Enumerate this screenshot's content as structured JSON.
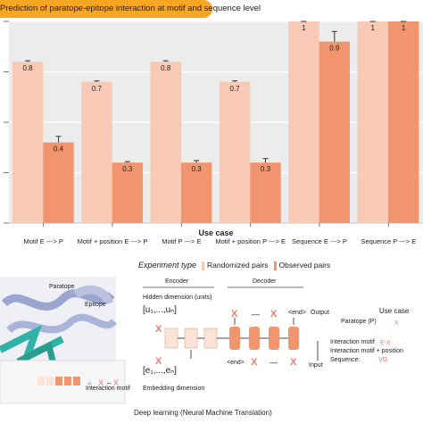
{
  "chart_data": {
    "type": "bar",
    "title": "Prediction of paratope-epitope interaction at motif and sequence level",
    "xlabel": "Use case",
    "ylabel": "",
    "ylim": [
      0,
      1
    ],
    "categories": [
      "Motif E ---> P",
      "Motif + position E ---> P",
      "Motif P ---> E",
      "Motif + position P ---> E",
      "Sequence E ---> P",
      "Sequence P ---> E"
    ],
    "series": [
      {
        "name": "Randomized pairs",
        "color": "#f8c9b4",
        "values": [
          0.8,
          0.7,
          0.8,
          0.7,
          1,
          1
        ],
        "labels": [
          "0.8",
          "0.7",
          "0.8",
          "0.7",
          "1",
          "1"
        ],
        "err": [
          0.005,
          0.005,
          0.005,
          0.005,
          0.004,
          0.004
        ]
      },
      {
        "name": "Observed pairs",
        "color": "#f0956e",
        "values": [
          0.4,
          0.3,
          0.3,
          0.3,
          0.9,
          1
        ],
        "labels": [
          "0.4",
          "0.3",
          "0.3",
          "0.3",
          "0.9",
          "1"
        ],
        "err": [
          0.03,
          0.005,
          0.01,
          0.02,
          0.05,
          0.01
        ]
      }
    ],
    "grid": true
  },
  "legend": {
    "title": "Experiment type",
    "randomized": "Randomized pairs",
    "observed": "Observed pairs"
  },
  "diagram": {
    "epitope": "Epitope",
    "paratope": "Paratope",
    "interaction_motif_left": "Interaction motif",
    "encoder": "Encoder",
    "decoder": "Decoder",
    "hidden_dimension": "Hidden dimension (units)",
    "hidden_vector": "[u₁,...,uₙ]",
    "embedding_vector": "[e₁,...,eₙ]",
    "embedding_dimension": "Embedding dimension",
    "end_top": "<end>",
    "output": "Output",
    "end_bottom": "<end>",
    "input": "Input",
    "use_case": "Use case",
    "paratope_p": "Paratope (P)",
    "interaction_motif_1": "Interaction motif",
    "interaction_motif_2": "Interaction motif + position",
    "sequence": "Sequence:",
    "footer": "Deep learning (Neural Machine Translation)"
  }
}
